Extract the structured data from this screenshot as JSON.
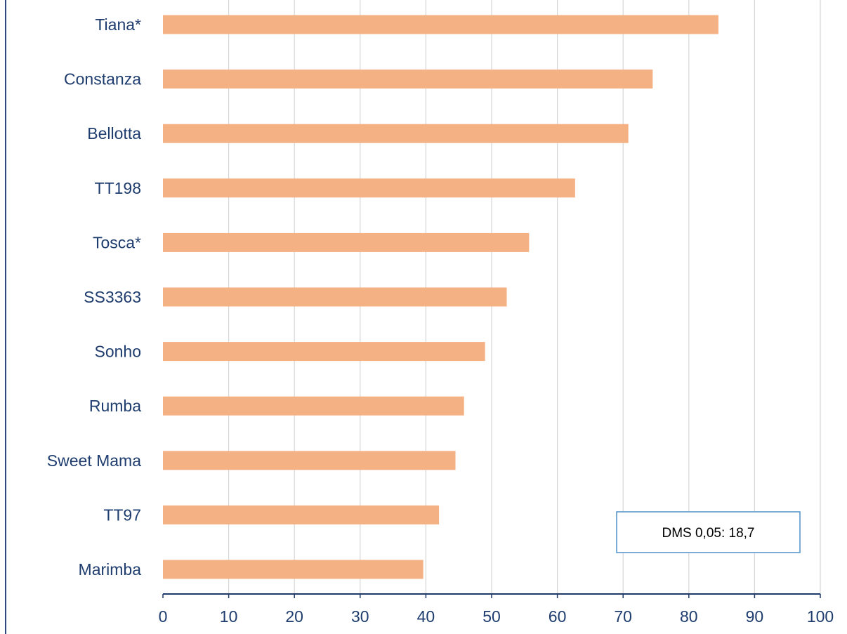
{
  "chart_data": {
    "type": "bar",
    "orientation": "horizontal",
    "categories": [
      "Tiana*",
      "Constanza",
      "Bellotta",
      "TT198",
      "Tosca*",
      "SS3363",
      "Sonho",
      "Rumba",
      "Sweet Mama",
      "TT97",
      "Marimba"
    ],
    "values": [
      84.5,
      74.5,
      70.8,
      62.7,
      55.7,
      52.3,
      49.0,
      45.8,
      44.5,
      42.0,
      39.6
    ],
    "title": "",
    "xlabel": "",
    "ylabel": "",
    "xlim": [
      0,
      100
    ],
    "xticks": [
      "0",
      "10",
      "20",
      "30",
      "40",
      "50",
      "60",
      "70",
      "80",
      "90",
      "100"
    ],
    "grid": "vertical",
    "legend": "none",
    "bar_color": "#f4b183",
    "annotation": "DMS 0,05: 18,7"
  }
}
